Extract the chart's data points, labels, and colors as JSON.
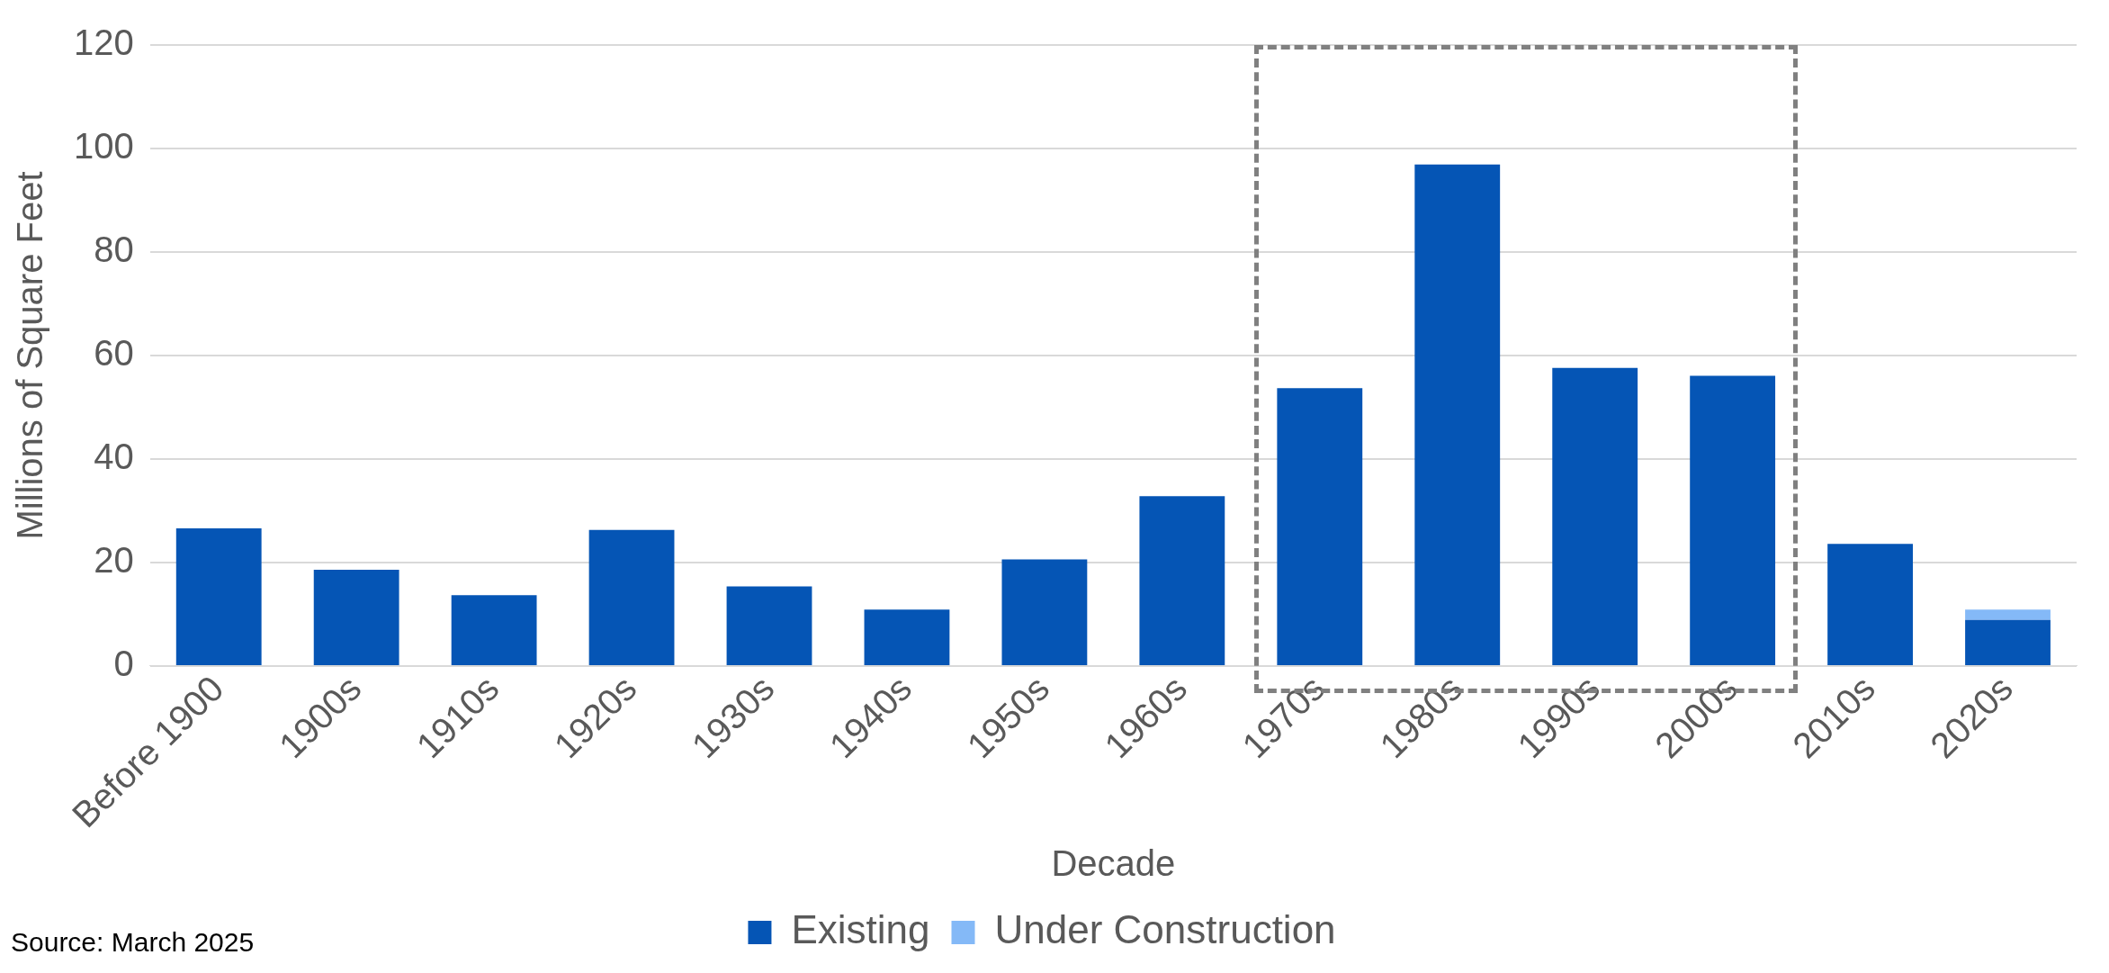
{
  "chart_data": {
    "type": "bar",
    "stacked": true,
    "xlabel": "Decade",
    "ylabel": "Millions of Square Feet",
    "categories": [
      "Before 1900",
      "1900s",
      "1910s",
      "1920s",
      "1930s",
      "1940s",
      "1950s",
      "1960s",
      "1970s",
      "1980s",
      "1990s",
      "2000s",
      "2010s",
      "2020s"
    ],
    "series": [
      {
        "name": "Existing",
        "color": "#0555b5",
        "values": [
          26.6,
          18.6,
          13.7,
          26.3,
          15.4,
          10.9,
          20.6,
          32.8,
          53.7,
          96.9,
          57.6,
          56.1,
          23.6,
          8.9
        ]
      },
      {
        "name": "Under Construction",
        "color": "#84b9f7",
        "values": [
          0,
          0,
          0,
          0,
          0,
          0,
          0,
          0,
          0,
          0,
          0,
          0,
          0,
          2.0
        ]
      }
    ],
    "ylim": [
      0,
      120
    ],
    "yticks": [
      0,
      20,
      40,
      60,
      80,
      100,
      120
    ],
    "grid": "y",
    "legend": "bottom",
    "annotations": [
      "Source: March 2025"
    ]
  }
}
